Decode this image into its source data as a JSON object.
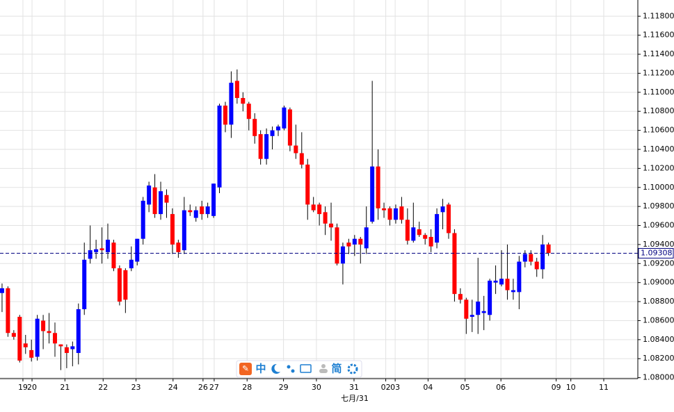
{
  "chart_data": {
    "type": "candlestick",
    "x": [
      0,
      1,
      2,
      3,
      4,
      5,
      6,
      7,
      8,
      9,
      10,
      11,
      12,
      13,
      14,
      15,
      16,
      17,
      18,
      19,
      20,
      21,
      22,
      23,
      24,
      25,
      26,
      27,
      28,
      29,
      30,
      31,
      32,
      33,
      34,
      35,
      36,
      37,
      38,
      39,
      40,
      41,
      42,
      43,
      44,
      45,
      46,
      47,
      48,
      49,
      50,
      51,
      52,
      53,
      54,
      55,
      56,
      57,
      58,
      59,
      60,
      61,
      62,
      63,
      64,
      65,
      66,
      67,
      68,
      69,
      70,
      71,
      72,
      73,
      74,
      75,
      76,
      77,
      78,
      79,
      80,
      81,
      82,
      83,
      84,
      85,
      86,
      87,
      88,
      89,
      90,
      91,
      92,
      93
    ],
    "open": [
      1.0889,
      1.0894,
      1.0847,
      1.0864,
      1.0836,
      1.0829,
      1.0822,
      1.086,
      1.0849,
      1.0847,
      1.0835,
      1.0832,
      1.083,
      1.0826,
      1.0872,
      1.0925,
      1.0932,
      1.0936,
      1.0932,
      1.0942,
      1.0915,
      1.0913,
      1.0915,
      1.0922,
      1.0946,
      1.0982,
      1.1,
      1.0972,
      1.0992,
      1.0972,
      1.0942,
      1.0934,
      1.0976,
      1.0968,
      1.098,
      1.0972,
      1.097,
      1.1,
      1.1086,
      1.1066,
      1.1112,
      1.1094,
      1.1088,
      1.1072,
      1.1056,
      1.103,
      1.1054,
      1.106,
      1.1062,
      1.1082,
      1.1044,
      1.1036,
      1.1024,
      1.0982,
      1.0982,
      1.0974,
      1.0962,
      1.0958,
      1.092,
      1.0942,
      1.094,
      1.0946,
      1.0936,
      1.0964,
      1.1022,
      1.0978,
      1.0978,
      1.0966,
      1.098,
      1.0966,
      1.0944,
      1.0956,
      1.095,
      1.0948,
      1.0942,
      1.0974,
      1.0982,
      1.0952,
      1.0888,
      1.0882,
      1.0864,
      1.0866,
      1.0868,
      1.0866,
      1.09,
      1.0898,
      1.0904,
      1.089,
      1.089,
      1.0922,
      1.093,
      1.0922,
      1.0914,
      1.094
    ],
    "high": [
      1.0899,
      1.0896,
      1.085,
      1.0866,
      1.0845,
      1.084,
      1.0866,
      1.0866,
      1.0868,
      1.0858,
      1.0835,
      1.0835,
      1.0838,
      1.0878,
      1.0942,
      1.096,
      1.0945,
      1.0958,
      1.0962,
      1.0945,
      1.0918,
      1.0915,
      1.0938,
      1.0946,
      1.099,
      1.1006,
      1.1014,
      1.1006,
      1.0998,
      1.0978,
      1.0945,
      1.099,
      1.0982,
      1.098,
      1.0986,
      1.0984,
      1.1004,
      1.1088,
      1.109,
      1.1122,
      1.1124,
      1.11,
      1.109,
      1.1078,
      1.106,
      1.1062,
      1.1064,
      1.1066,
      1.1086,
      1.1084,
      1.1066,
      1.1058,
      1.103,
      1.099,
      1.0984,
      1.098,
      1.0984,
      1.0962,
      1.0942,
      1.0946,
      1.095,
      1.0948,
      1.098,
      1.1112,
      1.104,
      1.0984,
      1.098,
      1.0982,
      1.099,
      1.0978,
      1.0984,
      1.0964,
      1.0952,
      1.0956,
      1.0978,
      1.0988,
      1.0984,
      1.0956,
      1.0894,
      1.0884,
      1.0882,
      1.0926,
      1.0886,
      1.0904,
      1.0918,
      1.0934,
      1.094,
      1.0904,
      1.0928,
      1.0934,
      1.0934,
      1.0926,
      1.095,
      1.0942
    ],
    "low": [
      1.0869,
      1.0843,
      1.084,
      1.0816,
      1.0825,
      1.0817,
      1.0818,
      1.083,
      1.0836,
      1.0822,
      1.0808,
      1.081,
      1.0812,
      1.0814,
      1.0866,
      1.092,
      1.0925,
      1.092,
      1.0925,
      1.0912,
      1.0876,
      1.0868,
      1.0912,
      1.0918,
      1.094,
      1.0974,
      1.0968,
      1.0966,
      1.0968,
      1.093,
      1.0926,
      1.093,
      1.097,
      1.0964,
      1.0966,
      1.0968,
      1.0968,
      1.0994,
      1.1058,
      1.1052,
      1.1088,
      1.108,
      1.106,
      1.1046,
      1.1024,
      1.1024,
      1.104,
      1.1054,
      1.106,
      1.1038,
      1.103,
      1.102,
      1.0966,
      1.0974,
      1.096,
      1.095,
      1.0944,
      1.0918,
      1.0898,
      1.093,
      1.0928,
      1.092,
      1.093,
      1.0962,
      1.0966,
      1.0968,
      1.096,
      1.0962,
      1.0962,
      1.094,
      1.0942,
      1.0948,
      1.094,
      1.0932,
      1.0936,
      1.0956,
      1.0946,
      1.088,
      1.0878,
      1.0846,
      1.0848,
      1.0846,
      1.085,
      1.086,
      1.0888,
      1.0896,
      1.0882,
      1.0882,
      1.0872,
      1.0916,
      1.0918,
      1.0906,
      1.0904,
      1.0928
    ],
    "close": [
      1.0894,
      1.0847,
      1.0843,
      1.0818,
      1.0832,
      1.0821,
      1.0862,
      1.0849,
      1.0847,
      1.0836,
      1.0833,
      1.0826,
      1.0833,
      1.0872,
      1.0924,
      1.0934,
      1.0935,
      1.0934,
      1.0945,
      1.0915,
      1.088,
      1.0882,
      1.0924,
      1.0946,
      1.0986,
      1.1002,
      1.0972,
      1.0996,
      1.0984,
      1.094,
      1.0932,
      1.0976,
      1.0974,
      1.0976,
      1.0972,
      1.098,
      1.1004,
      1.1086,
      1.1066,
      1.111,
      1.1094,
      1.1088,
      1.1072,
      1.1054,
      1.103,
      1.1056,
      1.106,
      1.1064,
      1.1084,
      1.1044,
      1.1036,
      1.1024,
      1.0982,
      1.0976,
      1.0972,
      1.0962,
      1.0958,
      1.092,
      1.0938,
      1.0938,
      1.0946,
      1.094,
      1.0958,
      1.1022,
      1.0978,
      1.0976,
      1.0966,
      1.0978,
      1.0966,
      1.0944,
      1.0958,
      1.095,
      1.0946,
      1.0938,
      1.0972,
      1.098,
      1.0952,
      1.0888,
      1.0882,
      1.0862,
      1.0866,
      1.088,
      1.087,
      1.0902,
      1.0902,
      1.0904,
      1.0892,
      1.0892,
      1.0922,
      1.093,
      1.0922,
      1.0914,
      1.094,
      1.0931
    ],
    "up_color": "#0000ff",
    "down_color": "#ff0000",
    "xlim": [
      -0.35,
      108.2
    ],
    "ylim": [
      1.0799,
      1.1197
    ],
    "xticks": [
      {
        "value": 3.55,
        "label": "19"
      },
      {
        "value": 5.1,
        "label": "20"
      },
      {
        "value": 10.7,
        "label": "21"
      },
      {
        "value": 17.2,
        "label": "22"
      },
      {
        "value": 22.8,
        "label": "23"
      },
      {
        "value": 29.1,
        "label": "24"
      },
      {
        "value": 34.2,
        "label": "26"
      },
      {
        "value": 36.1,
        "label": "27"
      },
      {
        "value": 41.7,
        "label": "28"
      },
      {
        "value": 47.9,
        "label": "29"
      },
      {
        "value": 53.5,
        "label": "30"
      },
      {
        "value": 59.9,
        "label": "31"
      },
      {
        "value": 65.3,
        "label": "02"
      },
      {
        "value": 66.9,
        "label": "03"
      },
      {
        "value": 72.5,
        "label": "04"
      },
      {
        "value": 78.8,
        "label": "05"
      },
      {
        "value": 84.9,
        "label": "06"
      },
      {
        "value": 94.3,
        "label": "09"
      },
      {
        "value": 96.8,
        "label": "10"
      },
      {
        "value": 102.4,
        "label": "11"
      }
    ],
    "yticks": [
      {
        "value": 1.08,
        "label": "1.08000"
      },
      {
        "value": 1.082,
        "label": "1.08200"
      },
      {
        "value": 1.084,
        "label": "1.08400"
      },
      {
        "value": 1.086,
        "label": "1.08600"
      },
      {
        "value": 1.088,
        "label": "1.08800"
      },
      {
        "value": 1.09,
        "label": "1.09000"
      },
      {
        "value": 1.092,
        "label": "1.09200"
      },
      {
        "value": 1.094,
        "label": "1.09400"
      },
      {
        "value": 1.096,
        "label": "1.09600"
      },
      {
        "value": 1.098,
        "label": "1.09800"
      },
      {
        "value": 1.1,
        "label": "1.10000"
      },
      {
        "value": 1.102,
        "label": "1.10200"
      },
      {
        "value": 1.104,
        "label": "1.10400"
      },
      {
        "value": 1.106,
        "label": "1.10600"
      },
      {
        "value": 1.108,
        "label": "1.10800"
      },
      {
        "value": 1.11,
        "label": "1.11000"
      },
      {
        "value": 1.112,
        "label": "1.11200"
      },
      {
        "value": 1.114,
        "label": "1.11400"
      },
      {
        "value": 1.116,
        "label": "1.11600"
      },
      {
        "value": 1.118,
        "label": "1.11800"
      }
    ],
    "current_price": {
      "value": 1.09308,
      "label": "1.09308"
    },
    "x_axis_label": "七月/31",
    "grid": true,
    "toolbar": [
      "中",
      "简"
    ]
  }
}
